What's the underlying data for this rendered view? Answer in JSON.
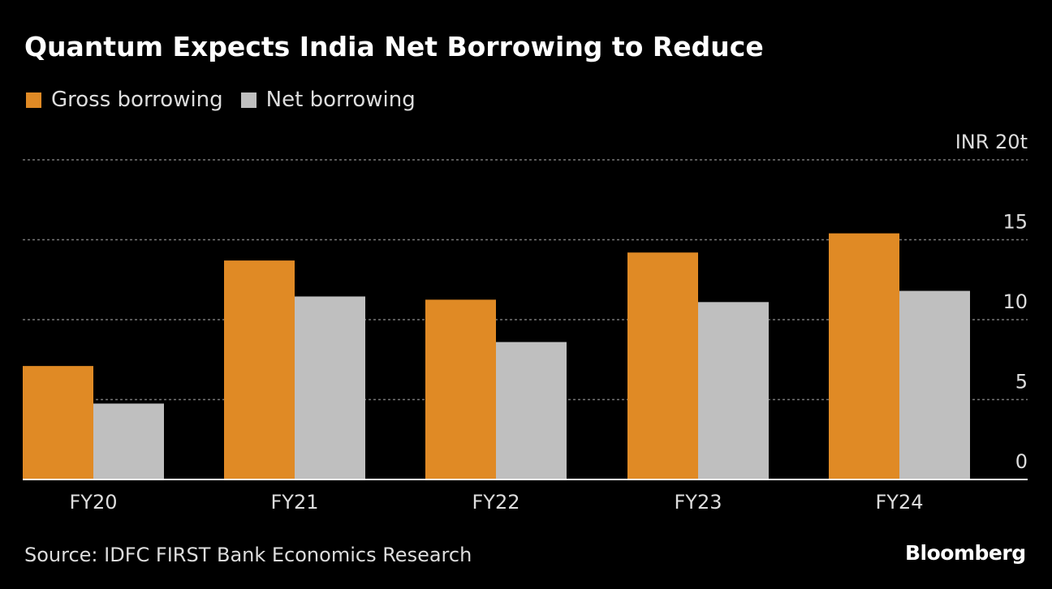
{
  "colors": {
    "background": "#000000",
    "gross": "#e08a25",
    "net": "#bfbfbf",
    "grid": "#777777",
    "axis": "#ffffff"
  },
  "source_text": "Source: IDFC FIRST Bank Economics Research",
  "brand": "Bloomberg",
  "chart_data": {
    "type": "bar",
    "title": "Quantum Expects India Net Borrowing to Reduce",
    "categories": [
      "FY20",
      "FY21",
      "FY22",
      "FY23",
      "FY24"
    ],
    "series": [
      {
        "name": "Gross borrowing",
        "values": [
          7.1,
          13.7,
          11.25,
          14.2,
          15.4
        ]
      },
      {
        "name": "Net borrowing",
        "values": [
          4.75,
          11.45,
          8.6,
          11.1,
          11.8
        ]
      }
    ],
    "ylim": [
      0,
      20
    ],
    "yticks": [
      0,
      5,
      10,
      15,
      20
    ],
    "ytick_labels": [
      "0",
      "5",
      "10",
      "15",
      "INR 20t"
    ],
    "xlabel": "",
    "ylabel": "",
    "legend_position": "top-left",
    "grid": true
  }
}
